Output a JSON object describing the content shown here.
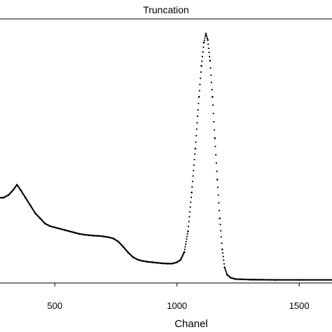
{
  "chart_data": {
    "type": "scatter",
    "title": "Truncation",
    "xlabel": "Chanel",
    "ylabel": "",
    "xlim": [
      270,
      1640
    ],
    "ylim": [
      0,
      1
    ],
    "y_scale": "unlabeled",
    "x_ticks": [
      500,
      1000,
      1500
    ],
    "grid": false,
    "legend": "none",
    "marker_color": "#000000",
    "series": [
      {
        "points": [
          [
            270,
            0.33
          ],
          [
            290,
            0.33
          ],
          [
            310,
            0.34
          ],
          [
            330,
            0.36
          ],
          [
            345,
            0.38
          ],
          [
            360,
            0.36
          ],
          [
            380,
            0.33
          ],
          [
            400,
            0.3
          ],
          [
            420,
            0.27
          ],
          [
            440,
            0.25
          ],
          [
            460,
            0.23
          ],
          [
            480,
            0.22
          ],
          [
            500,
            0.215
          ],
          [
            520,
            0.21
          ],
          [
            540,
            0.205
          ],
          [
            560,
            0.2
          ],
          [
            580,
            0.195
          ],
          [
            600,
            0.19
          ],
          [
            620,
            0.187
          ],
          [
            640,
            0.185
          ],
          [
            660,
            0.183
          ],
          [
            680,
            0.182
          ],
          [
            700,
            0.18
          ],
          [
            720,
            0.177
          ],
          [
            740,
            0.172
          ],
          [
            760,
            0.16
          ],
          [
            780,
            0.14
          ],
          [
            800,
            0.118
          ],
          [
            820,
            0.1
          ],
          [
            840,
            0.09
          ],
          [
            860,
            0.085
          ],
          [
            880,
            0.082
          ],
          [
            900,
            0.08
          ],
          [
            920,
            0.078
          ],
          [
            940,
            0.076
          ],
          [
            960,
            0.075
          ],
          [
            980,
            0.075
          ],
          [
            1000,
            0.08
          ],
          [
            1015,
            0.09
          ],
          [
            1030,
            0.12
          ],
          [
            1045,
            0.2
          ],
          [
            1060,
            0.35
          ],
          [
            1075,
            0.52
          ],
          [
            1090,
            0.72
          ],
          [
            1100,
            0.84
          ],
          [
            1110,
            0.93
          ],
          [
            1118,
            0.965
          ],
          [
            1126,
            0.94
          ],
          [
            1135,
            0.86
          ],
          [
            1145,
            0.72
          ],
          [
            1155,
            0.56
          ],
          [
            1165,
            0.4
          ],
          [
            1175,
            0.25
          ],
          [
            1185,
            0.13
          ],
          [
            1195,
            0.06
          ],
          [
            1205,
            0.032
          ],
          [
            1220,
            0.02
          ],
          [
            1240,
            0.015
          ],
          [
            1300,
            0.013
          ],
          [
            1400,
            0.012
          ],
          [
            1500,
            0.012
          ],
          [
            1640,
            0.012
          ]
        ]
      }
    ]
  }
}
